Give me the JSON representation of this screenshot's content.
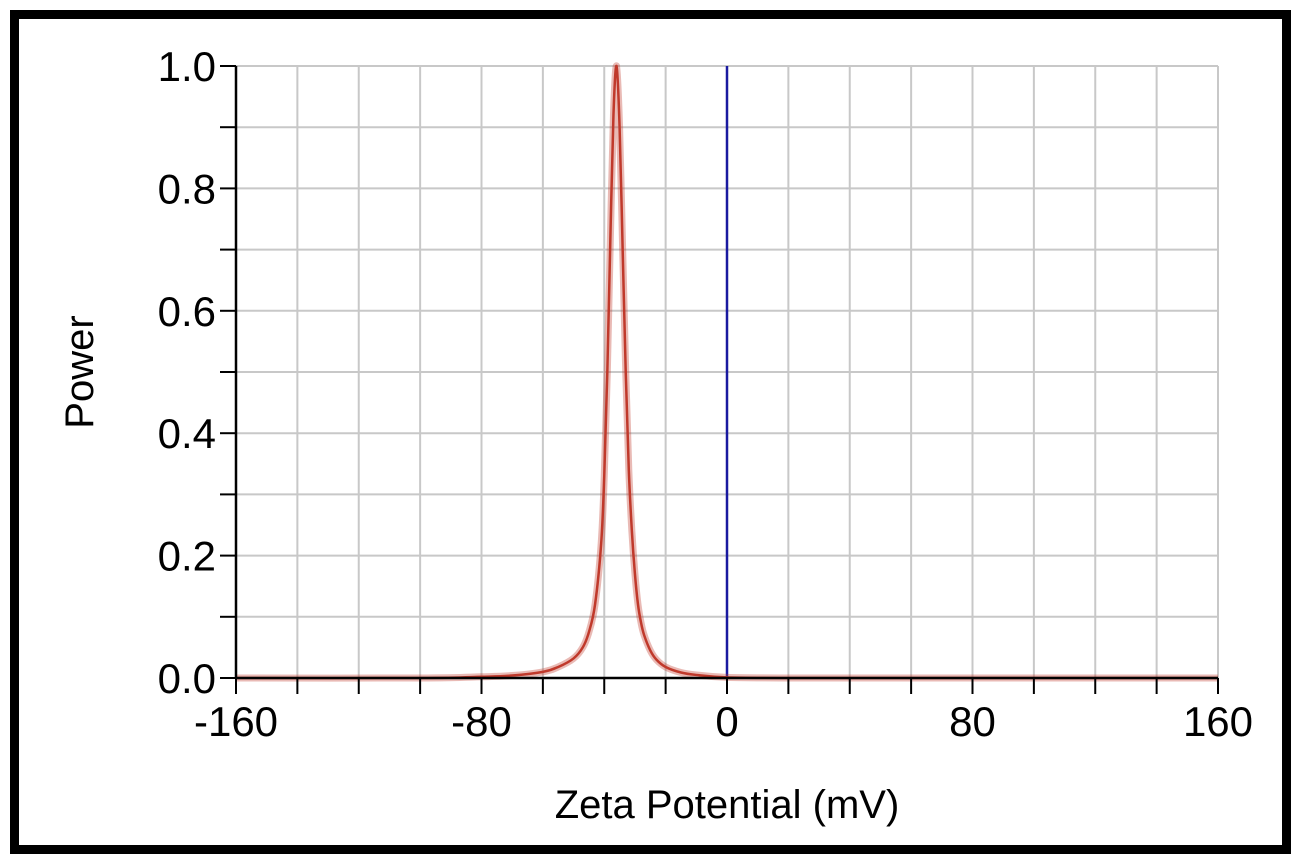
{
  "chart_data": {
    "type": "line",
    "title": "",
    "xlabel": "Zeta Potential (mV)",
    "ylabel": "Power",
    "xlim": [
      -160,
      160
    ],
    "ylim": [
      0,
      1.0
    ],
    "x_major_ticks": [
      -160,
      -80,
      0,
      80,
      160
    ],
    "x_tick_labels": [
      "-160",
      "-80",
      "0",
      "80",
      "160"
    ],
    "x_minor_step": 20,
    "y_major_ticks": [
      0.0,
      0.2,
      0.4,
      0.6,
      0.8,
      1.0
    ],
    "y_tick_labels": [
      "0.0",
      "0.2",
      "0.4",
      "0.6",
      "0.8",
      "1.0"
    ],
    "y_minor_step": 0.1,
    "grid": true,
    "legend": "none",
    "series": [
      {
        "color": "#c0392b",
        "x": [
          -160,
          -100,
          -80,
          -70,
          -60,
          -55,
          -50,
          -47,
          -45,
          -43,
          -41,
          -40,
          -39,
          -38,
          -37,
          -36,
          -35,
          -34,
          -33,
          -32,
          -31,
          -30,
          -29,
          -28,
          -27,
          -25,
          -23,
          -20,
          -15,
          -10,
          0,
          20,
          60,
          160
        ],
        "y": [
          0.0,
          0.0,
          0.002,
          0.004,
          0.01,
          0.018,
          0.032,
          0.05,
          0.075,
          0.12,
          0.22,
          0.33,
          0.5,
          0.72,
          0.92,
          1.0,
          0.9,
          0.7,
          0.5,
          0.34,
          0.24,
          0.17,
          0.12,
          0.09,
          0.07,
          0.045,
          0.03,
          0.018,
          0.009,
          0.005,
          0.001,
          0.0,
          0.0,
          0.0
        ]
      }
    ],
    "reference_line": {
      "x": 0,
      "color": "#1a1aa0"
    }
  }
}
